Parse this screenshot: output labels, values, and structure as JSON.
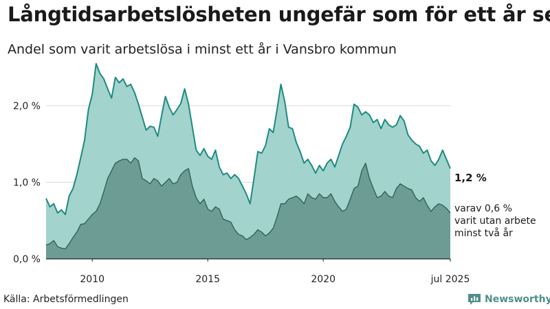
{
  "title": "Långtidsarbetslösheten ungefär som för ett år sen",
  "subtitle": "Andel som varit arbetslösa i minst ett år i Vansbro kommun",
  "source": "Källa: Arbetsförmedlingen",
  "brand": {
    "name": "Newsworthy",
    "icon": "bar-chart-logo-icon",
    "color": "#4e8f8a"
  },
  "annotations": {
    "total_value": "1,2 %",
    "long_term_lines": [
      "varav 0,6 %",
      "varit utan arbete",
      "minst två år"
    ]
  },
  "colors": {
    "total_fill": "#a2d3cd",
    "total_line": "#1d8a80",
    "long_term_fill": "#6d9c94",
    "long_term_line": "#2f5a55",
    "grid": "#d9d9d9"
  },
  "chart_data": {
    "type": "area",
    "ylim": [
      0,
      2.6
    ],
    "xlim": [
      "2008-01",
      "2025-07"
    ],
    "y_ticks": [
      {
        "value": 0,
        "label": "0,0 %"
      },
      {
        "value": 1,
        "label": "1,0 %"
      },
      {
        "value": 2,
        "label": "2,0 %"
      }
    ],
    "x_ticks": [
      {
        "date": "2010-01",
        "label": "2010"
      },
      {
        "date": "2015-01",
        "label": "2015"
      },
      {
        "date": "2020-01",
        "label": "2020"
      },
      {
        "date": "2025-07",
        "label": "jul 2025"
      }
    ],
    "grid": true,
    "series": [
      {
        "key": "total",
        "points": [
          [
            "2008-01",
            0.79
          ],
          [
            "2008-03",
            0.68
          ],
          [
            "2008-05",
            0.72
          ],
          [
            "2008-07",
            0.6
          ],
          [
            "2008-09",
            0.64
          ],
          [
            "2008-11",
            0.58
          ],
          [
            "2009-01",
            0.82
          ],
          [
            "2009-03",
            0.92
          ],
          [
            "2009-05",
            1.1
          ],
          [
            "2009-07",
            1.32
          ],
          [
            "2009-09",
            1.55
          ],
          [
            "2009-11",
            1.95
          ],
          [
            "2010-01",
            2.15
          ],
          [
            "2010-03",
            2.55
          ],
          [
            "2010-05",
            2.42
          ],
          [
            "2010-07",
            2.35
          ],
          [
            "2010-09",
            2.22
          ],
          [
            "2010-11",
            2.1
          ],
          [
            "2011-01",
            2.37
          ],
          [
            "2011-03",
            2.3
          ],
          [
            "2011-05",
            2.35
          ],
          [
            "2011-07",
            2.25
          ],
          [
            "2011-09",
            2.28
          ],
          [
            "2011-11",
            2.17
          ],
          [
            "2012-01",
            2.02
          ],
          [
            "2012-03",
            1.85
          ],
          [
            "2012-05",
            1.68
          ],
          [
            "2012-07",
            1.73
          ],
          [
            "2012-09",
            1.72
          ],
          [
            "2012-11",
            1.6
          ],
          [
            "2013-01",
            1.87
          ],
          [
            "2013-03",
            2.12
          ],
          [
            "2013-05",
            1.98
          ],
          [
            "2013-07",
            1.88
          ],
          [
            "2013-09",
            1.95
          ],
          [
            "2013-11",
            2.03
          ],
          [
            "2014-01",
            2.22
          ],
          [
            "2014-03",
            2.02
          ],
          [
            "2014-05",
            1.72
          ],
          [
            "2014-07",
            1.42
          ],
          [
            "2014-09",
            1.35
          ],
          [
            "2014-11",
            1.44
          ],
          [
            "2015-01",
            1.34
          ],
          [
            "2015-03",
            1.3
          ],
          [
            "2015-05",
            1.42
          ],
          [
            "2015-07",
            1.2
          ],
          [
            "2015-09",
            1.1
          ],
          [
            "2015-11",
            1.12
          ],
          [
            "2016-01",
            1.05
          ],
          [
            "2016-03",
            1.1
          ],
          [
            "2016-05",
            1.05
          ],
          [
            "2016-07",
            0.95
          ],
          [
            "2016-09",
            0.85
          ],
          [
            "2016-11",
            0.72
          ],
          [
            "2017-01",
            1.05
          ],
          [
            "2017-03",
            1.4
          ],
          [
            "2017-05",
            1.38
          ],
          [
            "2017-07",
            1.48
          ],
          [
            "2017-09",
            1.7
          ],
          [
            "2017-11",
            1.65
          ],
          [
            "2018-01",
            1.95
          ],
          [
            "2018-03",
            2.28
          ],
          [
            "2018-05",
            2.05
          ],
          [
            "2018-07",
            1.72
          ],
          [
            "2018-09",
            1.7
          ],
          [
            "2018-11",
            1.52
          ],
          [
            "2019-01",
            1.4
          ],
          [
            "2019-03",
            1.25
          ],
          [
            "2019-05",
            1.3
          ],
          [
            "2019-07",
            1.22
          ],
          [
            "2019-09",
            1.12
          ],
          [
            "2019-11",
            1.22
          ],
          [
            "2020-01",
            1.15
          ],
          [
            "2020-03",
            1.25
          ],
          [
            "2020-05",
            1.3
          ],
          [
            "2020-07",
            1.2
          ],
          [
            "2020-09",
            1.35
          ],
          [
            "2020-11",
            1.5
          ],
          [
            "2021-01",
            1.6
          ],
          [
            "2021-03",
            1.72
          ],
          [
            "2021-05",
            2.02
          ],
          [
            "2021-07",
            1.98
          ],
          [
            "2021-09",
            1.88
          ],
          [
            "2021-11",
            1.92
          ],
          [
            "2022-01",
            1.88
          ],
          [
            "2022-03",
            1.78
          ],
          [
            "2022-05",
            1.82
          ],
          [
            "2022-07",
            1.7
          ],
          [
            "2022-09",
            1.82
          ],
          [
            "2022-11",
            1.75
          ],
          [
            "2023-01",
            1.72
          ],
          [
            "2023-03",
            1.75
          ],
          [
            "2023-05",
            1.87
          ],
          [
            "2023-07",
            1.8
          ],
          [
            "2023-09",
            1.62
          ],
          [
            "2023-11",
            1.55
          ],
          [
            "2024-01",
            1.5
          ],
          [
            "2024-03",
            1.47
          ],
          [
            "2024-05",
            1.38
          ],
          [
            "2024-07",
            1.42
          ],
          [
            "2024-09",
            1.28
          ],
          [
            "2024-11",
            1.22
          ],
          [
            "2025-01",
            1.3
          ],
          [
            "2025-03",
            1.42
          ],
          [
            "2025-05",
            1.3
          ],
          [
            "2025-07",
            1.18
          ]
        ]
      },
      {
        "key": "long_term",
        "points": [
          [
            "2008-01",
            0.18
          ],
          [
            "2008-03",
            0.2
          ],
          [
            "2008-05",
            0.24
          ],
          [
            "2008-07",
            0.16
          ],
          [
            "2008-09",
            0.14
          ],
          [
            "2008-11",
            0.13
          ],
          [
            "2009-01",
            0.2
          ],
          [
            "2009-03",
            0.28
          ],
          [
            "2009-05",
            0.35
          ],
          [
            "2009-07",
            0.45
          ],
          [
            "2009-09",
            0.46
          ],
          [
            "2009-11",
            0.52
          ],
          [
            "2010-01",
            0.58
          ],
          [
            "2010-03",
            0.62
          ],
          [
            "2010-05",
            0.72
          ],
          [
            "2010-07",
            0.88
          ],
          [
            "2010-09",
            1.05
          ],
          [
            "2010-11",
            1.15
          ],
          [
            "2011-01",
            1.25
          ],
          [
            "2011-03",
            1.28
          ],
          [
            "2011-05",
            1.3
          ],
          [
            "2011-07",
            1.3
          ],
          [
            "2011-09",
            1.25
          ],
          [
            "2011-11",
            1.32
          ],
          [
            "2012-01",
            1.28
          ],
          [
            "2012-03",
            1.05
          ],
          [
            "2012-05",
            1.02
          ],
          [
            "2012-07",
            0.98
          ],
          [
            "2012-09",
            1.05
          ],
          [
            "2012-11",
            1.02
          ],
          [
            "2013-01",
            0.95
          ],
          [
            "2013-03",
            1.0
          ],
          [
            "2013-05",
            1.05
          ],
          [
            "2013-07",
            0.98
          ],
          [
            "2013-09",
            1.0
          ],
          [
            "2013-11",
            1.1
          ],
          [
            "2014-01",
            1.15
          ],
          [
            "2014-03",
            1.18
          ],
          [
            "2014-05",
            0.95
          ],
          [
            "2014-07",
            0.8
          ],
          [
            "2014-09",
            0.72
          ],
          [
            "2014-11",
            0.78
          ],
          [
            "2015-01",
            0.65
          ],
          [
            "2015-03",
            0.62
          ],
          [
            "2015-05",
            0.68
          ],
          [
            "2015-07",
            0.65
          ],
          [
            "2015-09",
            0.52
          ],
          [
            "2015-11",
            0.5
          ],
          [
            "2016-01",
            0.48
          ],
          [
            "2016-03",
            0.38
          ],
          [
            "2016-05",
            0.32
          ],
          [
            "2016-07",
            0.3
          ],
          [
            "2016-09",
            0.25
          ],
          [
            "2016-11",
            0.28
          ],
          [
            "2017-01",
            0.32
          ],
          [
            "2017-03",
            0.38
          ],
          [
            "2017-05",
            0.35
          ],
          [
            "2017-07",
            0.3
          ],
          [
            "2017-09",
            0.34
          ],
          [
            "2017-11",
            0.4
          ],
          [
            "2018-01",
            0.55
          ],
          [
            "2018-03",
            0.72
          ],
          [
            "2018-05",
            0.72
          ],
          [
            "2018-07",
            0.78
          ],
          [
            "2018-09",
            0.8
          ],
          [
            "2018-11",
            0.82
          ],
          [
            "2019-01",
            0.78
          ],
          [
            "2019-03",
            0.72
          ],
          [
            "2019-05",
            0.85
          ],
          [
            "2019-07",
            0.8
          ],
          [
            "2019-09",
            0.78
          ],
          [
            "2019-11",
            0.85
          ],
          [
            "2020-01",
            0.8
          ],
          [
            "2020-03",
            0.8
          ],
          [
            "2020-05",
            0.85
          ],
          [
            "2020-07",
            0.75
          ],
          [
            "2020-09",
            0.68
          ],
          [
            "2020-11",
            0.62
          ],
          [
            "2021-01",
            0.65
          ],
          [
            "2021-03",
            0.78
          ],
          [
            "2021-05",
            0.92
          ],
          [
            "2021-07",
            0.95
          ],
          [
            "2021-09",
            1.15
          ],
          [
            "2021-11",
            1.25
          ],
          [
            "2022-01",
            1.05
          ],
          [
            "2022-03",
            0.92
          ],
          [
            "2022-05",
            0.8
          ],
          [
            "2022-07",
            0.82
          ],
          [
            "2022-09",
            0.88
          ],
          [
            "2022-11",
            0.82
          ],
          [
            "2023-01",
            0.8
          ],
          [
            "2023-03",
            0.92
          ],
          [
            "2023-05",
            0.98
          ],
          [
            "2023-07",
            0.95
          ],
          [
            "2023-09",
            0.92
          ],
          [
            "2023-11",
            0.9
          ],
          [
            "2024-01",
            0.8
          ],
          [
            "2024-03",
            0.75
          ],
          [
            "2024-05",
            0.8
          ],
          [
            "2024-07",
            0.7
          ],
          [
            "2024-09",
            0.62
          ],
          [
            "2024-11",
            0.68
          ],
          [
            "2025-01",
            0.72
          ],
          [
            "2025-03",
            0.7
          ],
          [
            "2025-05",
            0.66
          ],
          [
            "2025-07",
            0.6
          ]
        ]
      }
    ]
  }
}
